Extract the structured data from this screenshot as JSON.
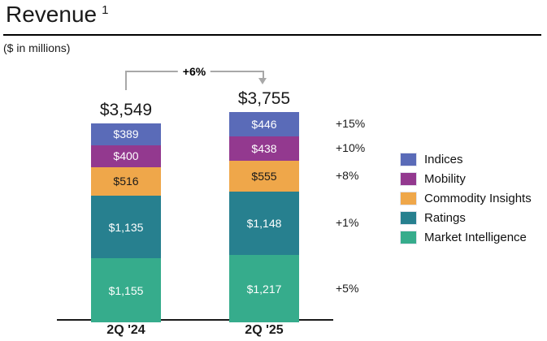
{
  "header": {
    "title": "Revenue",
    "footnote_marker": "1",
    "subtitle": "($ in millions)"
  },
  "chart_data": {
    "type": "bar",
    "subtype": "stacked",
    "title": "Revenue",
    "units": "$ in millions",
    "categories": [
      "2Q '24",
      "2Q '25"
    ],
    "totals": {
      "values": [
        3549,
        3755
      ],
      "labels": [
        "$3,549",
        "$3,755"
      ],
      "change": "+6%"
    },
    "series": [
      {
        "name": "Indices",
        "color": "#5a6bb8",
        "text_color": "#ffffff",
        "values": [
          389,
          446
        ],
        "labels": [
          "$389",
          "$446"
        ],
        "change": "+15%"
      },
      {
        "name": "Mobility",
        "color": "#93398f",
        "text_color": "#ffffff",
        "values": [
          400,
          438
        ],
        "labels": [
          "$400",
          "$438"
        ],
        "change": "+10%"
      },
      {
        "name": "Commodity Insights",
        "color": "#efa74a",
        "text_color": "#1a1a1a",
        "values": [
          516,
          555
        ],
        "labels": [
          "$516",
          "$555"
        ],
        "change": "+8%"
      },
      {
        "name": "Ratings",
        "color": "#27808f",
        "text_color": "#ffffff",
        "values": [
          1135,
          1148
        ],
        "labels": [
          "$1,135",
          "$1,148"
        ],
        "change": "+1%"
      },
      {
        "name": "Market Intelligence",
        "color": "#36ac8c",
        "text_color": "#ffffff",
        "values": [
          1155,
          1217
        ],
        "labels": [
          "$1,155",
          "$1,217"
        ],
        "change": "+5%"
      }
    ],
    "legend_position": "right",
    "ylim": [
      0,
      3755
    ],
    "grid": false,
    "connector_color": "#a8a8a8"
  }
}
